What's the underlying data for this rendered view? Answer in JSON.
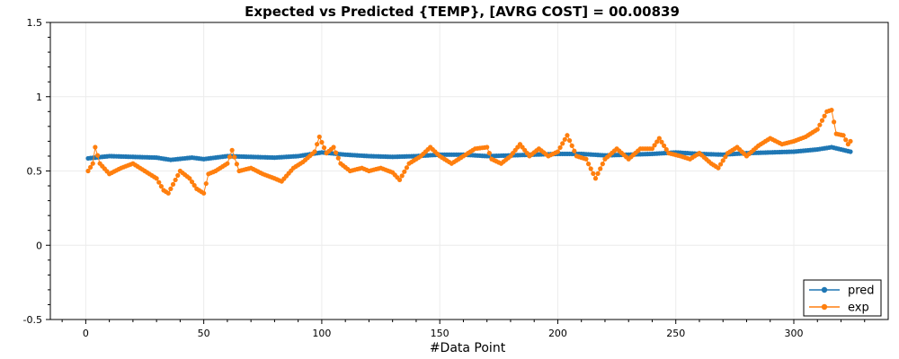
{
  "chart_data": {
    "type": "line",
    "title": "Expected vs Predicted {TEMP}, [AVRG COST] = 00.00839",
    "xlabel": "#Data Point",
    "ylabel": "",
    "xlim": [
      -15,
      340
    ],
    "ylim": [
      -0.5,
      1.5
    ],
    "x_ticks": [
      0,
      50,
      100,
      150,
      200,
      250,
      300
    ],
    "x_tick_labels": [
      "0",
      "50",
      "100",
      "150",
      "200",
      "250",
      "300"
    ],
    "y_ticks": [
      -0.5,
      0,
      0.5,
      1,
      1.5
    ],
    "y_tick_labels": [
      "-0.5",
      "0",
      "0.5",
      "1",
      "1.5"
    ],
    "grid": true,
    "legend_position": "bottom-right",
    "colors": {
      "pred": "#1f77b4",
      "exp": "#ff7f0e"
    },
    "series": [
      {
        "name": "pred",
        "anchors": [
          [
            1,
            0.585
          ],
          [
            10,
            0.6
          ],
          [
            20,
            0.595
          ],
          [
            30,
            0.59
          ],
          [
            36,
            0.575
          ],
          [
            45,
            0.59
          ],
          [
            50,
            0.58
          ],
          [
            60,
            0.6
          ],
          [
            70,
            0.595
          ],
          [
            80,
            0.59
          ],
          [
            90,
            0.6
          ],
          [
            100,
            0.625
          ],
          [
            110,
            0.61
          ],
          [
            120,
            0.6
          ],
          [
            130,
            0.595
          ],
          [
            140,
            0.6
          ],
          [
            150,
            0.61
          ],
          [
            160,
            0.61
          ],
          [
            170,
            0.6
          ],
          [
            180,
            0.605
          ],
          [
            190,
            0.61
          ],
          [
            200,
            0.615
          ],
          [
            210,
            0.615
          ],
          [
            220,
            0.605
          ],
          [
            230,
            0.61
          ],
          [
            240,
            0.615
          ],
          [
            250,
            0.625
          ],
          [
            260,
            0.615
          ],
          [
            270,
            0.61
          ],
          [
            280,
            0.62
          ],
          [
            290,
            0.625
          ],
          [
            300,
            0.63
          ],
          [
            310,
            0.645
          ],
          [
            316,
            0.66
          ],
          [
            324,
            0.63
          ]
        ]
      },
      {
        "name": "exp",
        "anchors": [
          [
            1,
            0.5
          ],
          [
            3,
            0.55
          ],
          [
            4,
            0.66
          ],
          [
            6,
            0.55
          ],
          [
            10,
            0.48
          ],
          [
            15,
            0.52
          ],
          [
            20,
            0.55
          ],
          [
            25,
            0.5
          ],
          [
            30,
            0.45
          ],
          [
            33,
            0.37
          ],
          [
            35,
            0.35
          ],
          [
            38,
            0.44
          ],
          [
            40,
            0.5
          ],
          [
            44,
            0.45
          ],
          [
            47,
            0.38
          ],
          [
            50,
            0.35
          ],
          [
            52,
            0.48
          ],
          [
            55,
            0.5
          ],
          [
            60,
            0.55
          ],
          [
            62,
            0.64
          ],
          [
            65,
            0.5
          ],
          [
            70,
            0.52
          ],
          [
            75,
            0.48
          ],
          [
            80,
            0.45
          ],
          [
            83,
            0.43
          ],
          [
            88,
            0.52
          ],
          [
            92,
            0.56
          ],
          [
            97,
            0.63
          ],
          [
            99,
            0.73
          ],
          [
            102,
            0.62
          ],
          [
            105,
            0.66
          ],
          [
            108,
            0.55
          ],
          [
            112,
            0.5
          ],
          [
            117,
            0.52
          ],
          [
            120,
            0.5
          ],
          [
            125,
            0.52
          ],
          [
            130,
            0.49
          ],
          [
            133,
            0.44
          ],
          [
            137,
            0.55
          ],
          [
            142,
            0.6
          ],
          [
            146,
            0.66
          ],
          [
            150,
            0.6
          ],
          [
            155,
            0.55
          ],
          [
            160,
            0.6
          ],
          [
            165,
            0.65
          ],
          [
            170,
            0.66
          ],
          [
            172,
            0.58
          ],
          [
            176,
            0.55
          ],
          [
            180,
            0.6
          ],
          [
            184,
            0.68
          ],
          [
            188,
            0.6
          ],
          [
            192,
            0.65
          ],
          [
            196,
            0.6
          ],
          [
            200,
            0.63
          ],
          [
            204,
            0.74
          ],
          [
            208,
            0.6
          ],
          [
            212,
            0.58
          ],
          [
            216,
            0.45
          ],
          [
            220,
            0.58
          ],
          [
            225,
            0.65
          ],
          [
            230,
            0.58
          ],
          [
            235,
            0.65
          ],
          [
            240,
            0.65
          ],
          [
            243,
            0.72
          ],
          [
            247,
            0.62
          ],
          [
            252,
            0.6
          ],
          [
            256,
            0.58
          ],
          [
            260,
            0.62
          ],
          [
            265,
            0.55
          ],
          [
            268,
            0.52
          ],
          [
            272,
            0.62
          ],
          [
            276,
            0.66
          ],
          [
            280,
            0.6
          ],
          [
            285,
            0.67
          ],
          [
            290,
            0.72
          ],
          [
            295,
            0.68
          ],
          [
            300,
            0.7
          ],
          [
            305,
            0.73
          ],
          [
            310,
            0.78
          ],
          [
            314,
            0.9
          ],
          [
            316,
            0.91
          ],
          [
            318,
            0.75
          ],
          [
            321,
            0.74
          ],
          [
            323,
            0.68
          ],
          [
            324,
            0.7
          ]
        ]
      }
    ]
  }
}
